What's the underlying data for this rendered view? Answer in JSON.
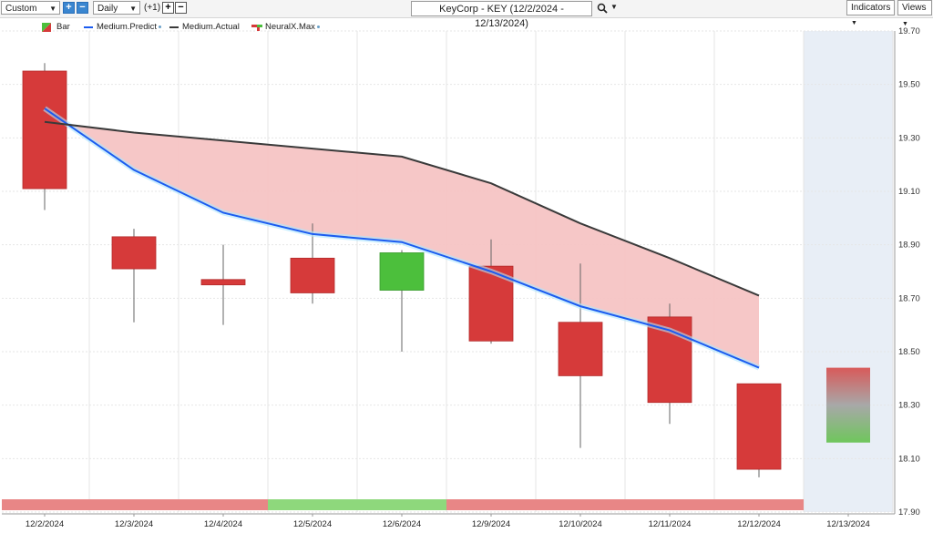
{
  "toolbar": {
    "period_select": "Custom",
    "plus_label": "+",
    "minus_label": "−",
    "interval_select": "Daily",
    "offset_label": "(+1)",
    "title": "KeyCorp - KEY (12/2/2024 - 12/13/2024)",
    "indicators_label": "Indicators",
    "views_label": "Views"
  },
  "legend": {
    "bar": "Bar",
    "predict": "Medium.Predict",
    "actual": "Medium.Actual",
    "neural": "NeuralX.Max"
  },
  "colors": {
    "up": "#4cbf3c",
    "down": "#d63a3a",
    "predict": "#1b5cf0",
    "actual": "#3a3a3a",
    "fill": "#f5c4c4",
    "forecast_bg": "#e8eef6",
    "signal_down": "#e88686",
    "signal_up": "#8ed87c"
  },
  "chart_data": {
    "type": "candlestick",
    "x": [
      "12/2/2024",
      "12/3/2024",
      "12/4/2024",
      "12/5/2024",
      "12/6/2024",
      "12/9/2024",
      "12/10/2024",
      "12/11/2024",
      "12/12/2024",
      "12/13/2024"
    ],
    "ylim": [
      17.9,
      19.7
    ],
    "yticks": [
      "19.70",
      "19.50",
      "19.30",
      "19.10",
      "18.90",
      "18.70",
      "18.50",
      "18.30",
      "18.10",
      "17.90"
    ],
    "candles": [
      {
        "open": 19.55,
        "high": 19.58,
        "low": 19.03,
        "close": 19.11,
        "dir": "down"
      },
      {
        "open": 18.93,
        "high": 18.96,
        "low": 18.61,
        "close": 18.81,
        "dir": "down"
      },
      {
        "open": 18.77,
        "high": 18.9,
        "low": 18.6,
        "close": 18.75,
        "dir": "down"
      },
      {
        "open": 18.85,
        "high": 18.98,
        "low": 18.68,
        "close": 18.72,
        "dir": "down"
      },
      {
        "open": 18.73,
        "high": 18.88,
        "low": 18.5,
        "close": 18.87,
        "dir": "up"
      },
      {
        "open": 18.82,
        "high": 18.92,
        "low": 18.53,
        "close": 18.54,
        "dir": "down"
      },
      {
        "open": 18.61,
        "high": 18.83,
        "low": 18.14,
        "close": 18.41,
        "dir": "down"
      },
      {
        "open": 18.63,
        "high": 18.68,
        "low": 18.23,
        "close": 18.31,
        "dir": "down"
      },
      {
        "open": 18.38,
        "high": 18.38,
        "low": 18.03,
        "close": 18.06,
        "dir": "down"
      }
    ],
    "forecast_range": {
      "high": 18.44,
      "low": 18.16
    },
    "medium_predict": [
      19.41,
      19.18,
      19.02,
      18.94,
      18.91,
      18.8,
      18.67,
      18.58,
      18.44
    ],
    "medium_actual": [
      19.36,
      19.32,
      19.29,
      19.26,
      19.23,
      19.13,
      18.98,
      18.85,
      18.71
    ],
    "neuralx_signal": [
      "down",
      "down",
      "down",
      "up",
      "up",
      "down",
      "down",
      "down",
      "down"
    ]
  }
}
